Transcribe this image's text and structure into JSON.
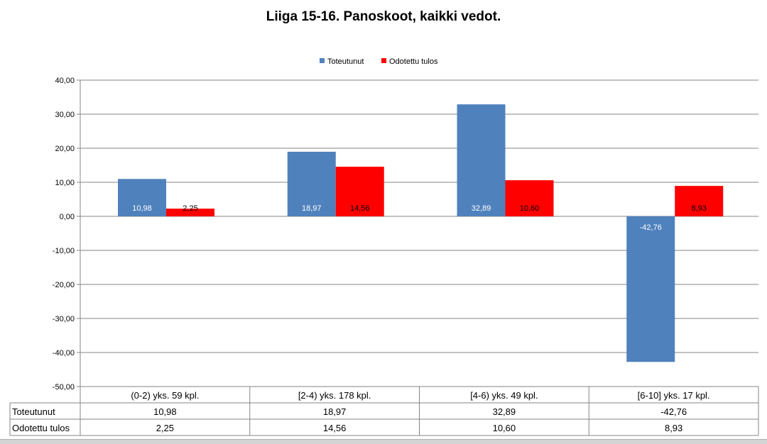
{
  "chart_data": {
    "type": "bar",
    "title": "Liiga 15-16. Panoskoot, kaikki vedot.",
    "categories": [
      "(0-2) yks. 59 kpl.",
      "[2-4) yks. 178 kpl.",
      "[4-6) yks. 49 kpl.",
      "[6-10] yks. 17 kpl."
    ],
    "series": [
      {
        "name": "Toteutunut",
        "color": "#4f81bd",
        "values": [
          10.98,
          18.97,
          32.89,
          -42.76
        ],
        "labels": [
          "10,98",
          "18,97",
          "32,89",
          "-42,76"
        ]
      },
      {
        "name": "Odotettu tulos",
        "color": "#ff0000",
        "values": [
          2.25,
          14.56,
          10.6,
          8.93
        ],
        "labels": [
          "2,25",
          "14,56",
          "10,60",
          "8,93"
        ]
      }
    ],
    "ylim": [
      -50,
      40
    ],
    "yticks": [
      40,
      30,
      20,
      10,
      0,
      -10,
      -20,
      -30,
      -40,
      -50
    ],
    "ytick_labels": [
      "40,00",
      "30,00",
      "20,00",
      "10,00",
      "0,00",
      "-10,00",
      "-20,00",
      "-30,00",
      "-40,00",
      "-50,00"
    ],
    "grid": true,
    "legend": "top-center",
    "data_table": true,
    "xlabel": "",
    "ylabel": ""
  }
}
